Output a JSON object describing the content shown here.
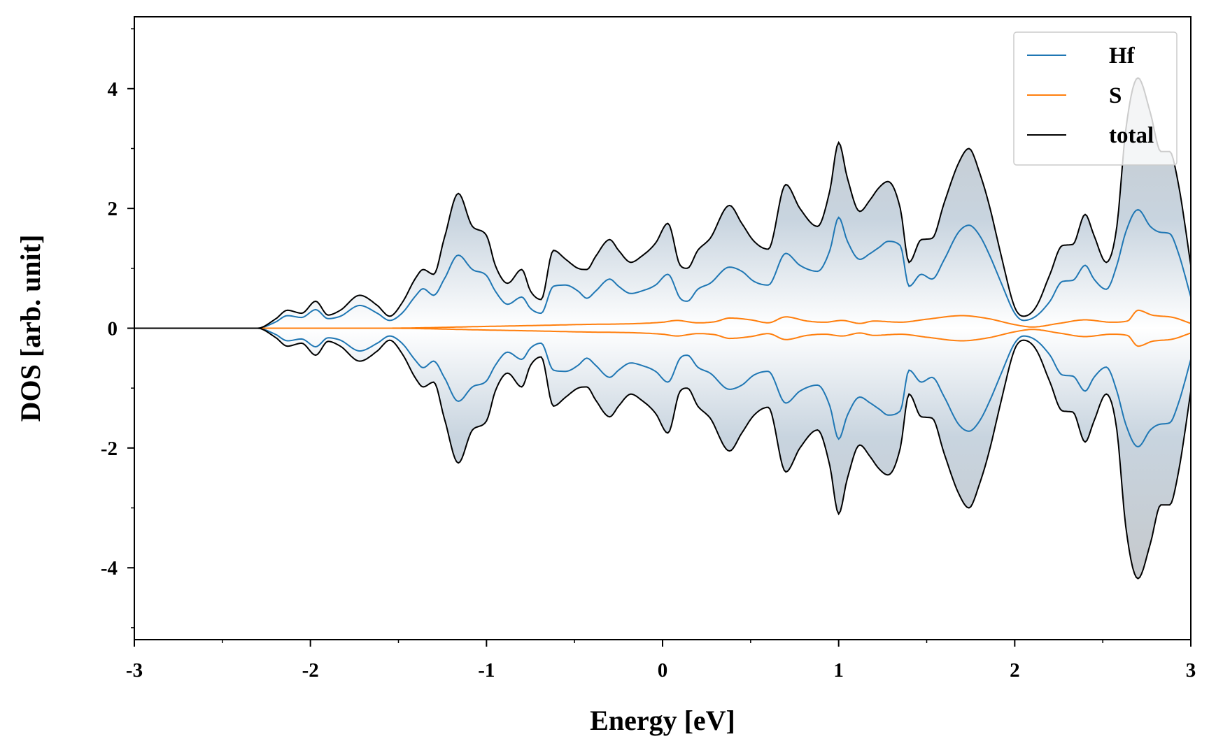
{
  "chart_data": {
    "type": "area",
    "xlabel": "Energy [eV]",
    "ylabel": "DOS [arb. unit]",
    "xlim": [
      -3,
      3
    ],
    "ylim": [
      -5.2,
      5.2
    ],
    "x_ticks": [
      -3,
      -2,
      -1,
      0,
      1,
      2,
      3
    ],
    "x_tick_labels": [
      "-3",
      "-2",
      "-1",
      "0",
      "1",
      "2",
      "3"
    ],
    "y_ticks": [
      -4,
      -2,
      0,
      2,
      4
    ],
    "y_tick_labels": [
      "-4",
      "-2",
      "0",
      "2",
      "4"
    ],
    "grid": false,
    "legend_position": "top-right",
    "mirrored_spin": true,
    "fill_gradient": [
      "#ffffff",
      "#c8d4df",
      "#c4c4c4"
    ],
    "series": [
      {
        "name": "Hf",
        "color": "#1f77b4",
        "x": [
          -3,
          -2.3,
          -2.2,
          -2.13,
          -2.05,
          -1.97,
          -1.9,
          -1.83,
          -1.72,
          -1.62,
          -1.55,
          -1.48,
          -1.4,
          -1.36,
          -1.3,
          -1.24,
          -1.16,
          -1.08,
          -1.0,
          -0.95,
          -0.88,
          -0.8,
          -0.75,
          -0.69,
          -0.62,
          -0.55,
          -0.48,
          -0.43,
          -0.38,
          -0.3,
          -0.25,
          -0.18,
          -0.12,
          -0.04,
          0.03,
          0.1,
          0.14,
          0.2,
          0.27,
          0.38,
          0.45,
          0.52,
          0.6,
          0.7,
          0.78,
          0.88,
          0.95,
          1.0,
          1.05,
          1.12,
          1.18,
          1.23,
          1.28,
          1.35,
          1.4,
          1.47,
          1.53,
          1.6,
          1.68,
          1.74,
          1.8,
          1.86,
          1.92,
          2.0,
          2.05,
          2.12,
          2.2,
          2.27,
          2.33,
          2.4,
          2.45,
          2.52,
          2.58,
          2.63,
          2.7,
          2.77,
          2.83,
          2.88,
          2.93,
          3.0
        ],
        "y": [
          0,
          0,
          0.1,
          0.21,
          0.18,
          0.31,
          0.16,
          0.2,
          0.38,
          0.25,
          0.13,
          0.25,
          0.55,
          0.66,
          0.55,
          0.82,
          1.22,
          0.98,
          0.88,
          0.62,
          0.4,
          0.52,
          0.33,
          0.25,
          0.7,
          0.72,
          0.62,
          0.5,
          0.62,
          0.82,
          0.7,
          0.58,
          0.62,
          0.72,
          0.9,
          0.5,
          0.45,
          0.65,
          0.75,
          1.02,
          0.95,
          0.78,
          0.72,
          1.25,
          1.05,
          0.95,
          1.3,
          1.85,
          1.45,
          1.15,
          1.25,
          1.35,
          1.45,
          1.38,
          0.7,
          0.9,
          0.82,
          1.15,
          1.6,
          1.72,
          1.55,
          1.2,
          0.78,
          0.25,
          0.13,
          0.2,
          0.45,
          0.78,
          0.8,
          1.05,
          0.82,
          0.65,
          1.05,
          1.6,
          1.98,
          1.7,
          1.6,
          1.58,
          1.25,
          0.52
        ]
      },
      {
        "name": "S",
        "color": "#ff7f0e",
        "x": [
          -3,
          -1.6,
          -1.0,
          -0.5,
          0.0,
          0.08,
          0.2,
          0.3,
          0.38,
          0.5,
          0.6,
          0.7,
          0.82,
          0.92,
          1.02,
          1.12,
          1.2,
          1.35,
          1.5,
          1.7,
          1.85,
          2.0,
          2.1,
          2.25,
          2.4,
          2.55,
          2.64,
          2.7,
          2.78,
          2.9,
          3.0
        ],
        "y": [
          0,
          0,
          0.03,
          0.06,
          0.1,
          0.13,
          0.09,
          0.11,
          0.17,
          0.14,
          0.09,
          0.19,
          0.12,
          0.1,
          0.13,
          0.08,
          0.12,
          0.1,
          0.15,
          0.21,
          0.16,
          0.06,
          0.02,
          0.08,
          0.14,
          0.1,
          0.12,
          0.3,
          0.22,
          0.18,
          0.08
        ]
      },
      {
        "name": "total",
        "color": "#000000",
        "x": [
          -3,
          -2.3,
          -2.2,
          -2.13,
          -2.05,
          -1.97,
          -1.9,
          -1.83,
          -1.72,
          -1.62,
          -1.55,
          -1.48,
          -1.4,
          -1.36,
          -1.3,
          -1.24,
          -1.16,
          -1.08,
          -1.0,
          -0.95,
          -0.88,
          -0.8,
          -0.75,
          -0.69,
          -0.62,
          -0.55,
          -0.48,
          -0.43,
          -0.38,
          -0.3,
          -0.25,
          -0.18,
          -0.12,
          -0.04,
          0.03,
          0.1,
          0.14,
          0.2,
          0.27,
          0.38,
          0.45,
          0.52,
          0.6,
          0.7,
          0.78,
          0.88,
          0.95,
          1.0,
          1.05,
          1.12,
          1.18,
          1.23,
          1.28,
          1.35,
          1.4,
          1.47,
          1.53,
          1.6,
          1.68,
          1.74,
          1.8,
          1.86,
          1.92,
          2.0,
          2.05,
          2.12,
          2.2,
          2.27,
          2.33,
          2.4,
          2.45,
          2.52,
          2.58,
          2.63,
          2.7,
          2.77,
          2.83,
          2.88,
          2.93,
          3.0
        ],
        "y": [
          0,
          0,
          0.15,
          0.3,
          0.25,
          0.45,
          0.22,
          0.3,
          0.55,
          0.38,
          0.2,
          0.42,
          0.85,
          0.98,
          0.9,
          1.5,
          2.25,
          1.7,
          1.55,
          1.05,
          0.75,
          0.98,
          0.62,
          0.48,
          1.3,
          1.15,
          1.0,
          0.98,
          1.2,
          1.48,
          1.3,
          1.1,
          1.2,
          1.42,
          1.75,
          1.05,
          1.0,
          1.3,
          1.5,
          2.05,
          1.75,
          1.45,
          1.32,
          2.4,
          2.0,
          1.7,
          2.3,
          3.1,
          2.5,
          1.95,
          2.15,
          2.35,
          2.45,
          2.0,
          1.1,
          1.48,
          1.5,
          2.1,
          2.75,
          3.0,
          2.6,
          2.0,
          1.25,
          0.35,
          0.2,
          0.35,
          0.9,
          1.38,
          1.4,
          1.9,
          1.55,
          1.1,
          1.7,
          3.3,
          4.18,
          3.6,
          2.95,
          2.95,
          2.4,
          1.05
        ]
      }
    ]
  }
}
